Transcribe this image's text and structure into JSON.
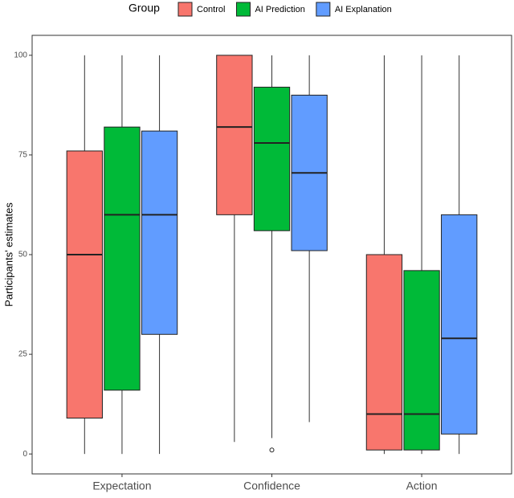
{
  "chart_data": {
    "type": "boxplot",
    "y_label": "Participants' estimates",
    "legend_title": "Group",
    "legend_position": "top",
    "categories": [
      "Expectation",
      "Confidence",
      "Action"
    ],
    "ylim": [
      -5,
      105
    ],
    "yticks": [
      0,
      25,
      50,
      75,
      100
    ],
    "grid": false,
    "series": [
      {
        "name": "Control",
        "color": "#F8766D",
        "values": [
          {
            "min": 0,
            "q1": 9,
            "median": 50,
            "q3": 76,
            "max": 100
          },
          {
            "min": 3,
            "q1": 60,
            "median": 82,
            "q3": 100,
            "max": 100
          },
          {
            "min": 0,
            "q1": 1,
            "median": 10,
            "q3": 50,
            "max": 100
          }
        ],
        "outliers": [
          [],
          [],
          []
        ]
      },
      {
        "name": "AI Prediction",
        "color": "#00BA38",
        "values": [
          {
            "min": 0,
            "q1": 16,
            "median": 60,
            "q3": 82,
            "max": 100
          },
          {
            "min": 4,
            "q1": 56,
            "median": 78,
            "q3": 92,
            "max": 100
          },
          {
            "min": 0,
            "q1": 1,
            "median": 10,
            "q3": 46,
            "max": 100
          }
        ],
        "outliers": [
          [],
          [
            1
          ],
          []
        ]
      },
      {
        "name": "AI Explanation",
        "color": "#619CFF",
        "values": [
          {
            "min": 0,
            "q1": 30,
            "median": 60,
            "q3": 81,
            "max": 100
          },
          {
            "min": 8,
            "q1": 51,
            "median": 70.5,
            "q3": 90,
            "max": 100
          },
          {
            "min": 0,
            "q1": 5,
            "median": 29,
            "q3": 60,
            "max": 100
          }
        ],
        "outliers": [
          [],
          [],
          []
        ]
      }
    ]
  }
}
